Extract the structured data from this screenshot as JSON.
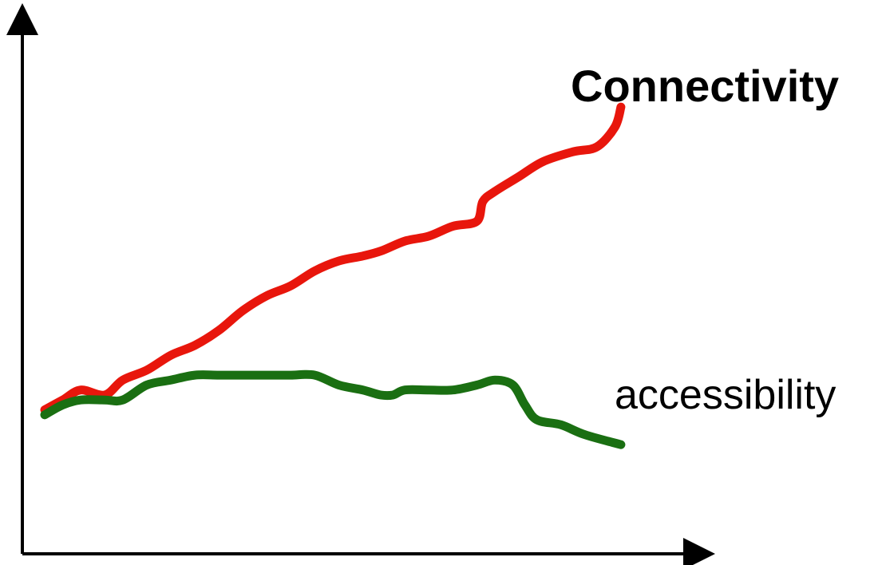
{
  "chart_data": {
    "type": "line",
    "title": "",
    "xlabel": "",
    "ylabel": "",
    "grid": false,
    "legend": "none",
    "ticks": false,
    "xlim": [
      0,
      100
    ],
    "ylim": [
      0,
      100
    ],
    "series": [
      {
        "name": "Connectivity",
        "color": "#e8160c",
        "x": [
          0,
          3,
          6,
          10,
          13,
          17,
          21,
          25,
          29,
          33,
          37,
          41,
          45,
          49,
          53,
          56,
          60,
          64,
          68,
          72,
          73,
          75,
          79,
          83,
          88,
          92,
          95,
          96
        ],
        "y": [
          29,
          31,
          33,
          32,
          35,
          37,
          40,
          42,
          45,
          49,
          52,
          54,
          57,
          59,
          60,
          61,
          63,
          64,
          66,
          67,
          71,
          73,
          76,
          79,
          81,
          82,
          86,
          90
        ]
      },
      {
        "name": "accessibility",
        "color": "#1a6f12",
        "x": [
          0,
          3,
          6,
          10,
          13,
          17,
          21,
          25,
          29,
          33,
          37,
          41,
          45,
          49,
          53,
          56,
          58,
          60,
          64,
          68,
          72,
          75,
          78,
          80,
          82,
          86,
          90,
          96
        ],
        "y": [
          28,
          30,
          31,
          31,
          31,
          34,
          35,
          36,
          36,
          36,
          36,
          36,
          36,
          34,
          33,
          32,
          32,
          33,
          33,
          33,
          34,
          35,
          34,
          30,
          27,
          26,
          24,
          22
        ]
      }
    ],
    "annotations": {
      "connectivity": "Connectivity",
      "accessibility": "accessibility"
    }
  }
}
